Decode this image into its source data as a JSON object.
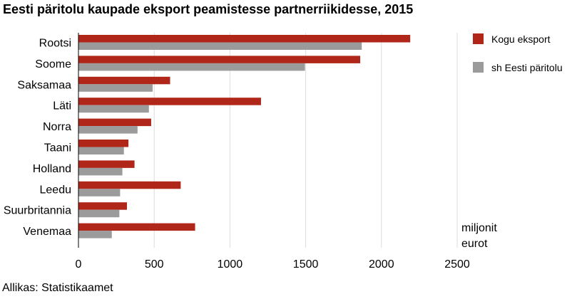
{
  "title": "Eesti päritolu kaupade eksport peamistesse partnerriikidesse, 2015",
  "source": "Allikas: Statistikaamet",
  "unit_line1": "miljonit",
  "unit_line2": "eurot",
  "colors": {
    "kogu": "#b0271a",
    "eesti": "#9b9b9b",
    "grid": "#dcdcdc",
    "axis": "#000000"
  },
  "chart_data": {
    "type": "bar",
    "orientation": "horizontal",
    "title": "Eesti päritolu kaupade eksport peamistesse partnerriikidesse, 2015",
    "xlabel": "miljonit eurot",
    "ylabel": "",
    "xlim": [
      0,
      2500
    ],
    "xticks": [
      0,
      500,
      1000,
      1500,
      2000,
      2500
    ],
    "grid": "vertical",
    "legend_position": "top-right",
    "categories": [
      "Rootsi",
      "Soome",
      "Saksamaa",
      "Läti",
      "Norra",
      "Taani",
      "Holland",
      "Leedu",
      "Suurbritannia",
      "Venemaa"
    ],
    "series": [
      {
        "name": "Kogu eksport",
        "color": "#b0271a",
        "values": [
          2190,
          1860,
          605,
          1205,
          480,
          330,
          370,
          675,
          320,
          770
        ]
      },
      {
        "name": "sh Eesti päritolu",
        "color": "#9b9b9b",
        "values": [
          1870,
          1495,
          490,
          465,
          390,
          300,
          290,
          275,
          270,
          220
        ]
      }
    ]
  }
}
